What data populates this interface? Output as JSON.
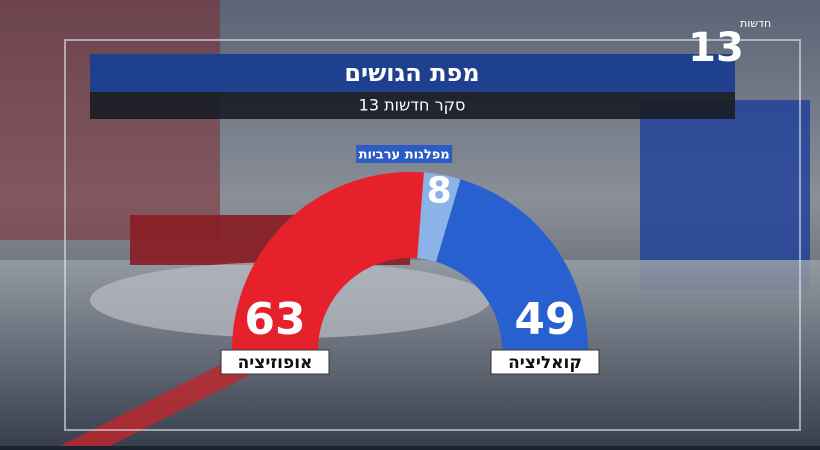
{
  "logo": {
    "brand": "חדשות",
    "channel": "13"
  },
  "chart_data": {
    "type": "half-donut",
    "title": "מפת הגושים",
    "subtitle": "סקר חדשות 13",
    "categories": [
      "אופוזיציה",
      "מפלגות ערביות",
      "קואליציה"
    ],
    "values": [
      63,
      8,
      49
    ],
    "colors": [
      "#e6212b",
      "#8cb3e8",
      "#2860cf"
    ]
  }
}
